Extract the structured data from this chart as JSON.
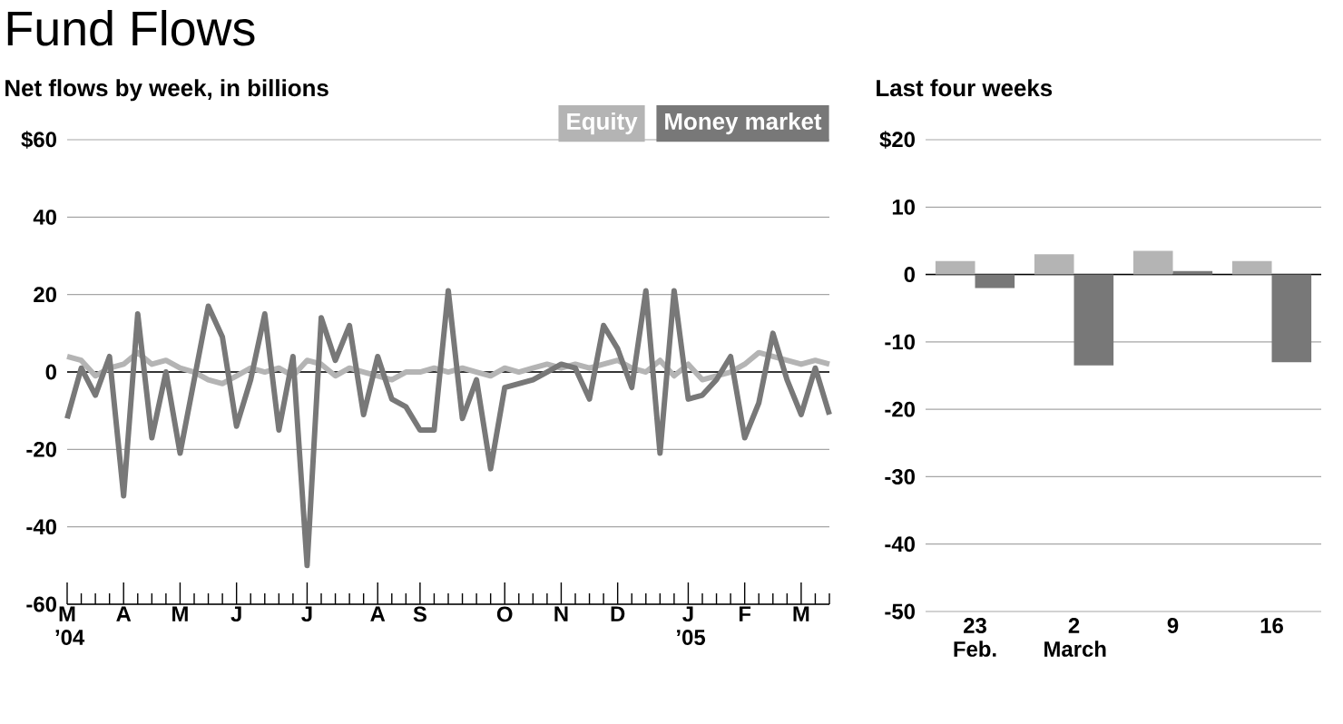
{
  "chart_data": [
    {
      "type": "line",
      "title": "Fund Flows",
      "subtitle": "Net flows by week, in billions",
      "categories": [
        "M ’04",
        null,
        null,
        null,
        "A",
        null,
        null,
        null,
        "M",
        null,
        null,
        null,
        "J",
        null,
        null,
        null,
        null,
        "J",
        null,
        null,
        null,
        null,
        "A",
        null,
        null,
        "S",
        null,
        null,
        null,
        null,
        null,
        "O",
        null,
        null,
        null,
        "N",
        null,
        null,
        null,
        "D",
        null,
        null,
        null,
        null,
        "J ’05",
        null,
        null,
        null,
        "F",
        null,
        null,
        null,
        "M",
        null,
        null
      ],
      "series": [
        {
          "name": "Equity",
          "color": "#b4b4b4",
          "values": [
            4,
            3,
            -1,
            1,
            2,
            5,
            2,
            3,
            1,
            0,
            -2,
            -3,
            -1,
            1,
            0,
            1,
            -1,
            3,
            2,
            -1,
            1,
            0,
            -1,
            -2,
            0,
            0,
            1,
            0,
            1,
            0,
            -1,
            1,
            0,
            1,
            2,
            1,
            2,
            1,
            2,
            3,
            1,
            0,
            3,
            -1,
            2,
            -2,
            -1,
            0,
            2,
            5,
            4,
            3,
            2,
            3,
            2
          ]
        },
        {
          "name": "Money market",
          "color": "#787878",
          "values": [
            -12,
            1,
            -6,
            4,
            -32,
            15,
            -17,
            0,
            -21,
            -2,
            17,
            9,
            -14,
            -2,
            15,
            -15,
            4,
            -50,
            14,
            3,
            12,
            -11,
            4,
            -7,
            -9,
            -15,
            -15,
            21,
            -12,
            -2,
            -25,
            -4,
            -3,
            -2,
            0,
            2,
            1,
            -7,
            12,
            6,
            -4,
            21,
            -21,
            21,
            -7,
            -6,
            -2,
            4,
            -17,
            -8,
            10,
            -2,
            -11,
            1,
            -11
          ]
        }
      ],
      "ylim": [
        -60,
        60
      ],
      "yticks": [
        {
          "value": 60,
          "label": "$60"
        },
        40,
        20,
        0,
        -20,
        -40,
        -60
      ],
      "ref_lines": [
        {
          "axis": "y",
          "value": 0
        }
      ],
      "grid": "y",
      "legend": "top right"
    },
    {
      "type": "bar",
      "title": "Last four weeks",
      "categories": [
        "23 Feb.",
        "2 March",
        "9",
        "16"
      ],
      "series": [
        {
          "color": "#b4b4b4",
          "values": [
            2,
            3,
            3.5,
            2
          ]
        },
        {
          "color": "#787878",
          "values": [
            -2,
            -13.5,
            0.5,
            -13
          ]
        }
      ],
      "ylim": [
        -50,
        20
      ],
      "yticks": [
        {
          "value": 20,
          "label": "$20"
        },
        10,
        0,
        -10,
        -20,
        -30,
        -40,
        -50
      ],
      "ref_lines": [
        {
          "axis": "y",
          "value": 0
        }
      ],
      "grid": "y"
    }
  ]
}
